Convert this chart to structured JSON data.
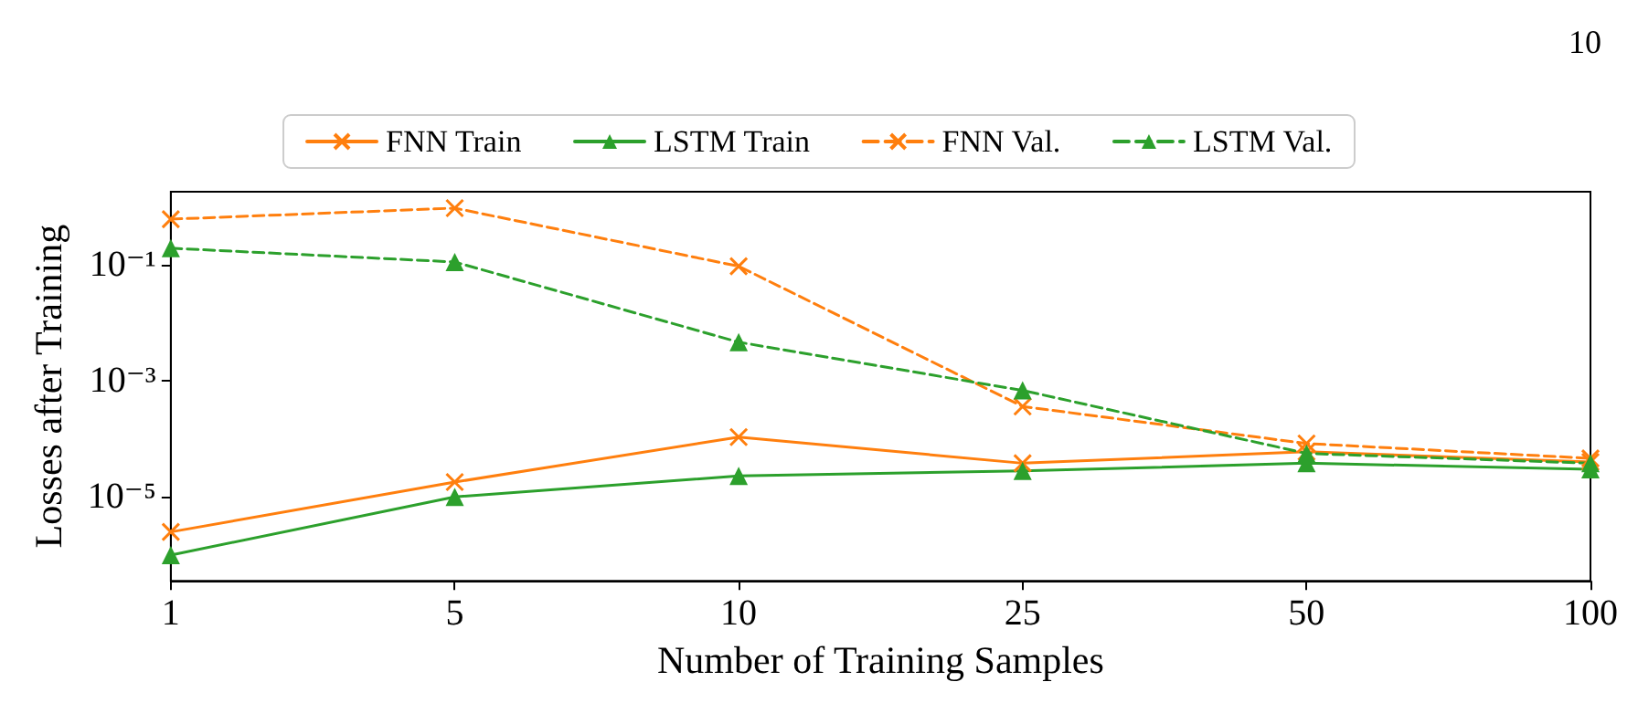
{
  "chart_data": {
    "type": "line",
    "xlabel": "Number of Training Samples",
    "ylabel": "Losses after Training",
    "annotations": [
      "10"
    ],
    "categories": [
      "1",
      "5",
      "10",
      "25",
      "50",
      "100"
    ],
    "log": "y",
    "ylim": [
      3.6e-07,
      1.78
    ],
    "yticks": [
      {
        "value": 0.1,
        "label": "10⁻¹"
      },
      {
        "value": 0.001,
        "label": "10⁻³"
      },
      {
        "value": 1e-05,
        "label": "10⁻⁵"
      }
    ],
    "grid": false,
    "legend": "top",
    "series": [
      {
        "name": "FNN Train",
        "color": "#ff7f0e",
        "marker": "cross",
        "line_style": "solid",
        "values": [
          2.5e-06,
          1.8e-05,
          0.000107,
          3.8e-05,
          6e-05,
          4e-05
        ]
      },
      {
        "name": "LSTM Train",
        "color": "#2ca02c",
        "marker": "triangle",
        "line_style": "solid",
        "values": [
          1e-06,
          1e-05,
          2.3e-05,
          2.8e-05,
          3.8e-05,
          3e-05
        ]
      },
      {
        "name": "FNN Val.",
        "color": "#ff7f0e",
        "marker": "cross",
        "line_style": "dashed",
        "values": [
          0.6,
          0.93,
          0.093,
          0.00036,
          8.3e-05,
          4.6e-05
        ]
      },
      {
        "name": "LSTM Val.",
        "color": "#2ca02c",
        "marker": "triangle",
        "line_style": "dashed",
        "values": [
          0.19,
          0.11,
          0.0046,
          0.00068,
          5.6e-05,
          3.8e-05
        ]
      }
    ]
  }
}
